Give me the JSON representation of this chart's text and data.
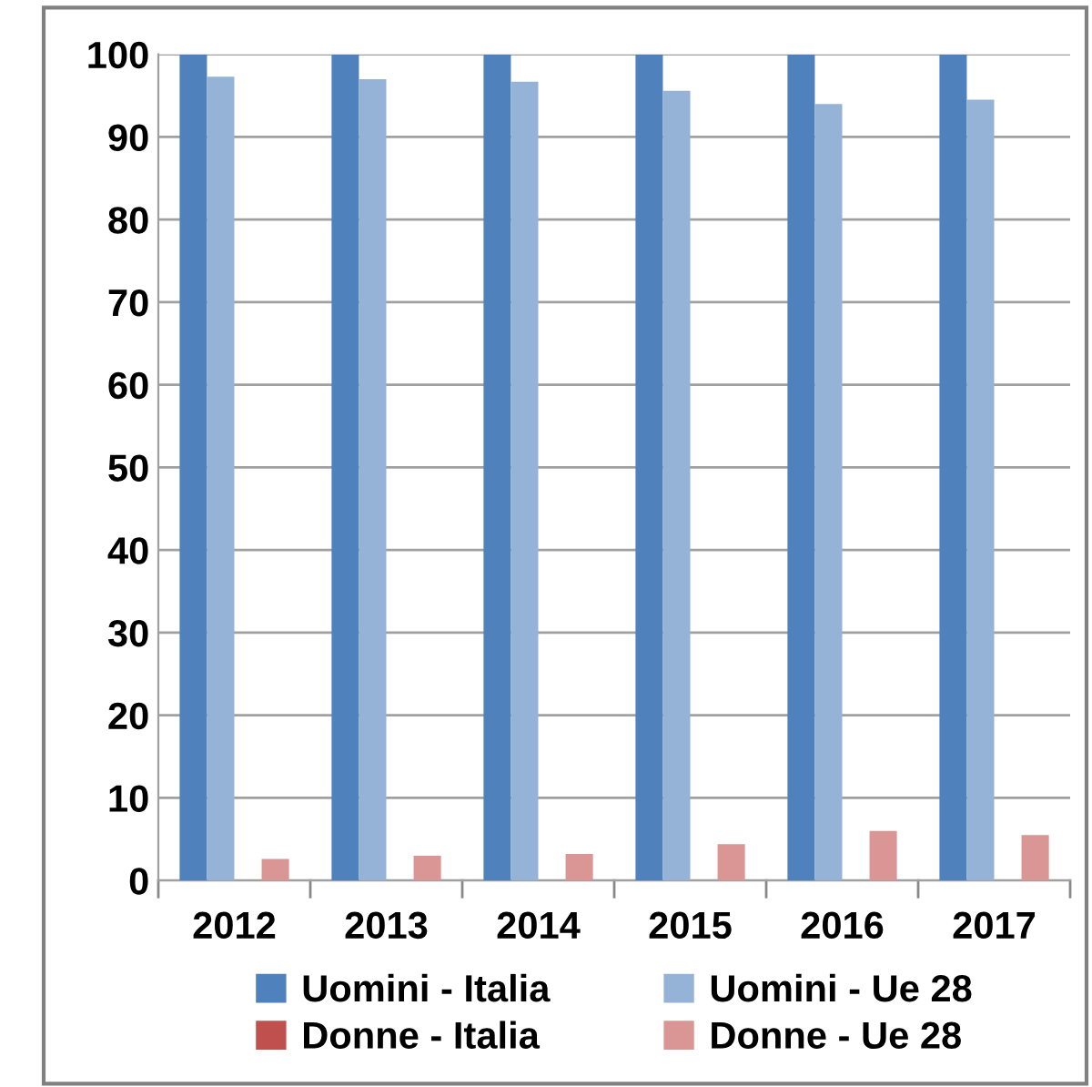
{
  "chart_data": {
    "type": "bar",
    "categories": [
      "2012",
      "2013",
      "2014",
      "2015",
      "2016",
      "2017"
    ],
    "series": [
      {
        "name": "Uomini - Italia",
        "color": "#4f81bd",
        "values": [
          100,
          100,
          100,
          100,
          100,
          100
        ]
      },
      {
        "name": "Uomini - Ue 28",
        "color": "#95b3d7",
        "values": [
          97.3,
          97.0,
          96.7,
          95.6,
          94.0,
          94.5
        ]
      },
      {
        "name": "Donne - Italia",
        "color": "#c0504d",
        "values": [
          0,
          0,
          0,
          0,
          0,
          0
        ]
      },
      {
        "name": "Donne - Ue 28",
        "color": "#d99694",
        "values": [
          2.6,
          3.0,
          3.2,
          4.4,
          6.0,
          5.5
        ]
      }
    ],
    "ylim": [
      0,
      100
    ],
    "yticks": [
      0,
      10,
      20,
      30,
      40,
      50,
      60,
      70,
      80,
      90,
      100
    ],
    "grid": "y",
    "legend": "bottom"
  }
}
